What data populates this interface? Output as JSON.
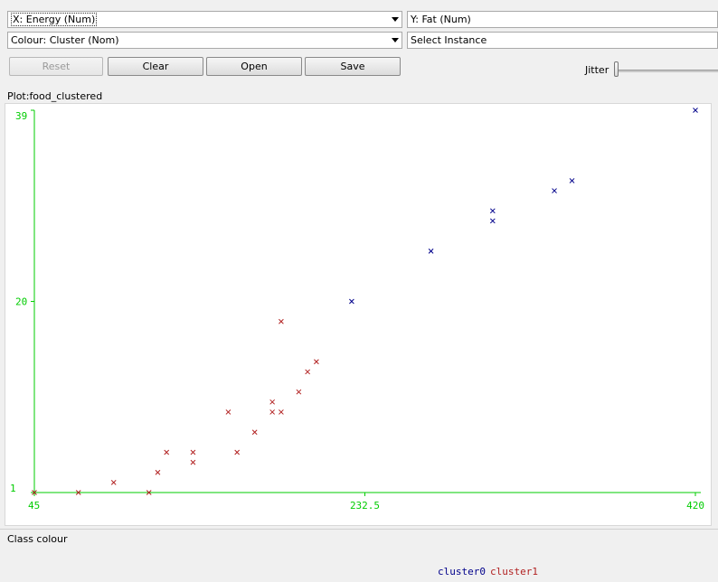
{
  "x_selector": {
    "value": "X: Energy (Num)"
  },
  "y_selector": {
    "value": "Y: Fat (Num)"
  },
  "colour_selector": {
    "value": "Colour: Cluster (Nom)"
  },
  "instance_selector": {
    "value": "Select Instance"
  },
  "buttons": {
    "reset": "Reset",
    "clear": "Clear",
    "open": "Open",
    "save": "Save"
  },
  "jitter": {
    "label": "Jitter",
    "value": 0
  },
  "plot": {
    "title": "Plot:food_clustered"
  },
  "class_panel": {
    "title": "Class colour"
  },
  "colors": {
    "cluster0": "#00008b",
    "cluster1": "#b22222",
    "axis": "#00cc00"
  },
  "legend": [
    {
      "name": "cluster0",
      "color": "#00008b"
    },
    {
      "name": "cluster1",
      "color": "#b22222"
    }
  ],
  "chart_data": {
    "type": "scatter",
    "xlabel": "Energy",
    "ylabel": "Fat",
    "xlim": [
      45,
      420
    ],
    "ylim": [
      1,
      39
    ],
    "x_ticks": [
      "45",
      "232.5",
      "420"
    ],
    "y_ticks": [
      "1",
      "20",
      "39"
    ],
    "series": [
      {
        "name": "cluster0",
        "color": "#00008b",
        "points": [
          [
            420,
            39
          ],
          [
            340,
            31
          ],
          [
            305,
            29
          ],
          [
            305,
            28
          ],
          [
            270,
            25
          ],
          [
            225,
            20
          ],
          [
            350,
            32
          ]
        ]
      },
      {
        "name": "cluster1",
        "color": "#b22222",
        "points": [
          [
            45,
            1
          ],
          [
            70,
            1
          ],
          [
            90,
            2
          ],
          [
            110,
            1
          ],
          [
            115,
            3
          ],
          [
            120,
            5
          ],
          [
            135,
            5
          ],
          [
            135,
            4
          ],
          [
            155,
            9
          ],
          [
            160,
            5
          ],
          [
            170,
            7
          ],
          [
            180,
            10
          ],
          [
            180,
            9
          ],
          [
            185,
            9
          ],
          [
            195,
            11
          ],
          [
            200,
            13
          ],
          [
            205,
            14
          ],
          [
            185,
            18
          ]
        ]
      }
    ]
  }
}
